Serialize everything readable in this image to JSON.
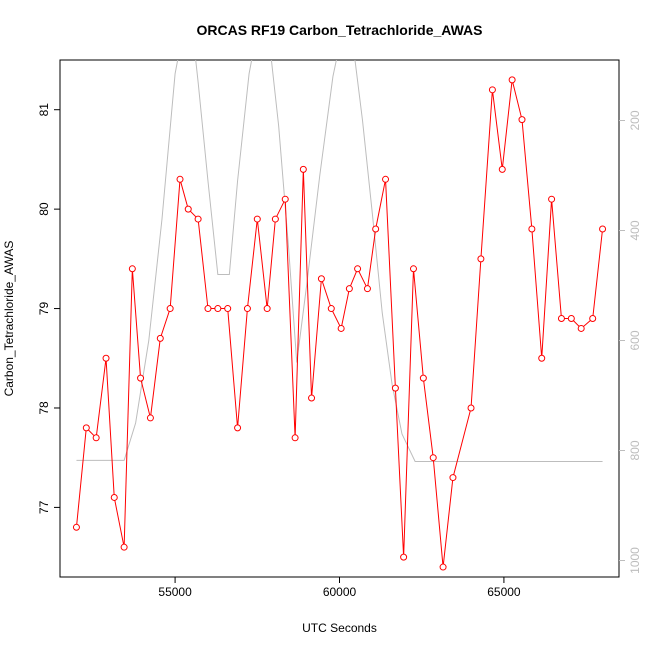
{
  "chart_data": {
    "type": "line",
    "title": "ORCAS RF19 Carbon_Tetrachloride_AWAS",
    "xlabel": "UTC Seconds",
    "ylabel": "Carbon_Tetrachloride_AWAS",
    "xlim": [
      51500,
      68500
    ],
    "ylim": [
      76.3,
      81.5
    ],
    "x_ticks": [
      55000,
      60000,
      65000
    ],
    "x_tick_labels": [
      "55000",
      "60000",
      "65000"
    ],
    "y_ticks": [
      77,
      78,
      79,
      80,
      81
    ],
    "y_tick_labels": [
      "77",
      "78",
      "79",
      "80",
      "81"
    ],
    "y2_lim": [
      1030,
      90
    ],
    "y2_ticks": [
      200,
      400,
      600,
      800,
      1000
    ],
    "y2_tick_labels": [
      "200",
      "400",
      "600",
      "800",
      "1000"
    ],
    "grid": false,
    "colors": {
      "series": "#ff0000",
      "secondary": "#bdbdbd"
    },
    "series": [
      {
        "axis": "left",
        "x": [
          52000,
          52300,
          52600,
          52900,
          53150,
          53450,
          53700,
          53950,
          54250,
          54550,
          54850,
          55150,
          55400,
          55700,
          56000,
          56300,
          56600,
          56900,
          57200,
          57500,
          57800,
          58050,
          58350,
          58650,
          58900,
          59150,
          59450,
          59750,
          60050,
          60300,
          60550,
          60850,
          61100,
          61400,
          61700,
          61950,
          62250,
          62550,
          62850,
          63150,
          63450,
          64000,
          64300,
          64650,
          64950,
          65250,
          65550,
          65850,
          66150,
          66450,
          66750,
          67050,
          67350,
          67700,
          68000
        ],
        "y": [
          76.8,
          77.8,
          77.7,
          78.5,
          77.1,
          76.6,
          79.4,
          78.3,
          77.9,
          78.7,
          79.0,
          80.3,
          80.0,
          79.9,
          79.0,
          79.0,
          79.0,
          77.8,
          79.0,
          79.9,
          79.0,
          79.9,
          80.1,
          77.7,
          80.4,
          78.1,
          79.3,
          79.0,
          78.8,
          79.2,
          79.4,
          79.2,
          79.8,
          80.3,
          78.2,
          76.5,
          79.4,
          78.3,
          77.5,
          76.4,
          77.3,
          78.0,
          79.5,
          81.2,
          80.4,
          81.3,
          80.9,
          79.8,
          78.5,
          80.1,
          78.9,
          78.9,
          78.8,
          78.9,
          79.8
        ]
      },
      {
        "axis": "right",
        "x": [
          52000,
          52500,
          53000,
          53450,
          53800,
          54200,
          54600,
          55000,
          55300,
          55500,
          55700,
          56000,
          56300,
          56650,
          56900,
          57250,
          57550,
          57800,
          58150,
          58450,
          58700,
          59000,
          59400,
          59800,
          60150,
          60450,
          60700,
          61000,
          61300,
          61600,
          61900,
          62300,
          62800,
          63500,
          64500,
          65500,
          66500,
          67500,
          68000
        ],
        "y": [
          818,
          818,
          818,
          818,
          750,
          600,
          380,
          115,
          20,
          20,
          130,
          310,
          480,
          480,
          310,
          115,
          20,
          20,
          210,
          430,
          640,
          500,
          300,
          120,
          20,
          80,
          200,
          370,
          550,
          680,
          770,
          820,
          820,
          820,
          820,
          820,
          820,
          820,
          820
        ]
      }
    ]
  }
}
